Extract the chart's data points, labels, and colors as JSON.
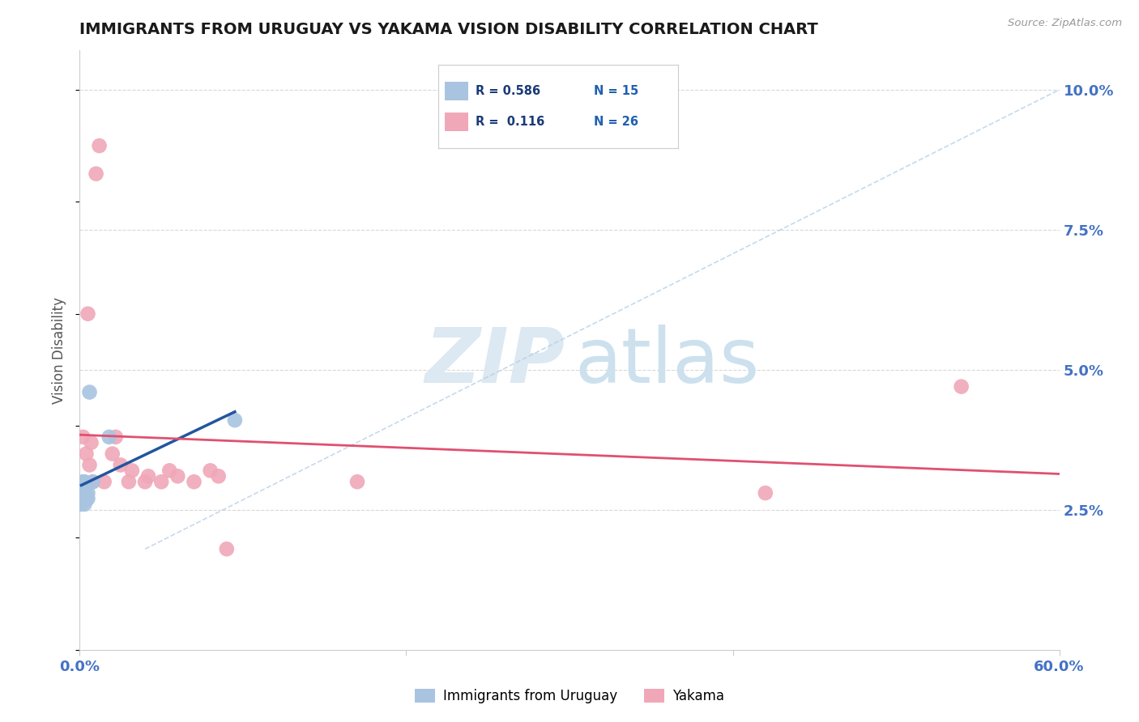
{
  "title": "IMMIGRANTS FROM URUGUAY VS YAKAMA VISION DISABILITY CORRELATION CHART",
  "source": "Source: ZipAtlas.com",
  "tick_color": "#4472c4",
  "ylabel": "Vision Disability",
  "xlim": [
    0.0,
    0.6
  ],
  "ylim": [
    0.0,
    0.107
  ],
  "blue_R": 0.586,
  "blue_N": 15,
  "pink_R": 0.116,
  "pink_N": 26,
  "blue_scatter_x": [
    0.001,
    0.001,
    0.002,
    0.002,
    0.003,
    0.003,
    0.003,
    0.004,
    0.004,
    0.005,
    0.005,
    0.006,
    0.008,
    0.018,
    0.095
  ],
  "blue_scatter_y": [
    0.026,
    0.028,
    0.027,
    0.03,
    0.026,
    0.028,
    0.03,
    0.027,
    0.029,
    0.027,
    0.028,
    0.046,
    0.03,
    0.038,
    0.041
  ],
  "pink_scatter_x": [
    0.002,
    0.004,
    0.005,
    0.006,
    0.007,
    0.008,
    0.01,
    0.012,
    0.015,
    0.02,
    0.022,
    0.025,
    0.03,
    0.032,
    0.04,
    0.042,
    0.05,
    0.055,
    0.06,
    0.07,
    0.08,
    0.085,
    0.09,
    0.17,
    0.42,
    0.54
  ],
  "pink_scatter_y": [
    0.038,
    0.035,
    0.06,
    0.033,
    0.037,
    0.03,
    0.085,
    0.09,
    0.03,
    0.035,
    0.038,
    0.033,
    0.03,
    0.032,
    0.03,
    0.031,
    0.03,
    0.032,
    0.031,
    0.03,
    0.032,
    0.031,
    0.018,
    0.03,
    0.028,
    0.047
  ],
  "blue_line_color": "#2255a0",
  "pink_line_color": "#e05070",
  "blue_scatter_color": "#a8c4e0",
  "pink_scatter_color": "#f0a8b8",
  "diag_line_color": "#b8d0e8",
  "background_color": "#ffffff",
  "legend_blue_label": "Immigrants from Uruguay",
  "legend_pink_label": "Yakama",
  "ytick_positions": [
    0.0,
    0.025,
    0.05,
    0.075,
    0.1
  ],
  "ytick_labels": [
    "",
    "2.5%",
    "5.0%",
    "7.5%",
    "10.0%"
  ],
  "xtick_positions": [
    0.0,
    0.2,
    0.4,
    0.6
  ],
  "xtick_labels": [
    "0.0%",
    "",
    "",
    "60.0%"
  ],
  "grid_color": "#d8d8d8",
  "watermark_zip_color": "#dce8f2",
  "watermark_atlas_color": "#cde0ee"
}
